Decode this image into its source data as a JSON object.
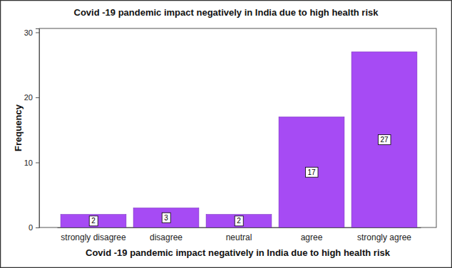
{
  "chart_data": {
    "type": "bar",
    "title": "Covid -19 pandemic impact negatively in India due to high health risk",
    "x_label": "Covid -19 pandemic impact negatively in India due to high health risk",
    "y_label": "Frequency",
    "categories": [
      "strongly disagree",
      "disagree",
      "neutral",
      "agree",
      "strongly agree"
    ],
    "values": [
      2,
      3,
      2,
      17,
      27
    ],
    "color": "#a64bf4",
    "ylim": [
      0,
      30.6
    ],
    "yticks": [
      0,
      10,
      20,
      30
    ],
    "grid": false,
    "data_labels": true
  }
}
